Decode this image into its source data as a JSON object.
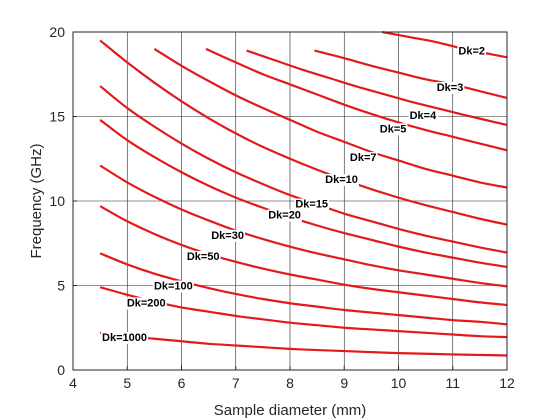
{
  "chart_data": {
    "type": "line",
    "xlabel": "Sample diameter (mm)",
    "ylabel": "Frequency (GHz)",
    "xlim": [
      4,
      12
    ],
    "ylim": [
      0,
      20
    ],
    "xticks": [
      "4",
      "5",
      "6",
      "7",
      "8",
      "9",
      "10",
      "11",
      "12"
    ],
    "yticks": [
      "0",
      "5",
      "10",
      "15",
      "20"
    ],
    "grid": true,
    "line_color": "#e31a1c",
    "series": [
      {
        "name": "Dk=2",
        "label_x": 11.35,
        "label_y": 18.9,
        "points": [
          [
            9.7,
            20.0
          ],
          [
            10.2,
            19.7
          ],
          [
            10.7,
            19.4
          ],
          [
            11.2,
            19.0
          ],
          [
            11.6,
            18.75
          ],
          [
            12.0,
            18.5
          ]
        ]
      },
      {
        "name": "Dk=3",
        "label_x": 10.95,
        "label_y": 16.75,
        "points": [
          [
            8.45,
            18.9
          ],
          [
            9.0,
            18.45
          ],
          [
            9.5,
            18.0
          ],
          [
            10.0,
            17.6
          ],
          [
            10.5,
            17.2
          ],
          [
            11.0,
            16.9
          ],
          [
            11.5,
            16.5
          ],
          [
            12.0,
            16.1
          ]
        ]
      },
      {
        "name": "Dk=4",
        "label_x": 10.45,
        "label_y": 15.1,
        "points": [
          [
            7.2,
            18.9
          ],
          [
            7.7,
            18.35
          ],
          [
            8.2,
            17.8
          ],
          [
            8.7,
            17.3
          ],
          [
            9.2,
            16.8
          ],
          [
            9.7,
            16.35
          ],
          [
            10.2,
            15.9
          ],
          [
            10.7,
            15.5
          ],
          [
            11.2,
            15.1
          ],
          [
            11.6,
            14.8
          ],
          [
            12.0,
            14.5
          ]
        ]
      },
      {
        "name": "Dk=5",
        "label_x": 9.9,
        "label_y": 14.3,
        "points": [
          [
            6.45,
            19.0
          ],
          [
            7.0,
            18.2
          ],
          [
            7.5,
            17.5
          ],
          [
            8.0,
            16.9
          ],
          [
            8.5,
            16.3
          ],
          [
            9.0,
            15.7
          ],
          [
            9.5,
            15.15
          ],
          [
            10.0,
            14.65
          ],
          [
            10.5,
            14.2
          ],
          [
            11.0,
            13.8
          ],
          [
            11.5,
            13.4
          ],
          [
            12.0,
            13.0
          ]
        ]
      },
      {
        "name": "Dk=7",
        "label_x": 9.35,
        "label_y": 12.6,
        "points": [
          [
            5.5,
            19.0
          ],
          [
            6.0,
            18.0
          ],
          [
            6.5,
            17.1
          ],
          [
            7.0,
            16.25
          ],
          [
            7.5,
            15.5
          ],
          [
            8.0,
            14.8
          ],
          [
            8.5,
            14.1
          ],
          [
            9.0,
            13.5
          ],
          [
            9.5,
            12.9
          ],
          [
            10.0,
            12.4
          ],
          [
            10.5,
            11.9
          ],
          [
            11.0,
            11.5
          ],
          [
            11.5,
            11.1
          ],
          [
            12.0,
            10.8
          ]
        ]
      },
      {
        "name": "Dk=10",
        "label_x": 8.95,
        "label_y": 11.3,
        "points": [
          [
            4.5,
            19.5
          ],
          [
            5.0,
            18.2
          ],
          [
            5.5,
            17.0
          ],
          [
            6.0,
            15.9
          ],
          [
            6.5,
            14.9
          ],
          [
            7.0,
            14.0
          ],
          [
            7.5,
            13.2
          ],
          [
            8.0,
            12.5
          ],
          [
            8.5,
            11.85
          ],
          [
            9.0,
            11.25
          ],
          [
            9.5,
            10.7
          ],
          [
            10.0,
            10.2
          ],
          [
            10.5,
            9.75
          ],
          [
            11.0,
            9.35
          ],
          [
            11.5,
            8.95
          ],
          [
            12.0,
            8.6
          ]
        ]
      },
      {
        "name": "Dk=15",
        "label_x": 8.4,
        "label_y": 9.85,
        "points": [
          [
            4.5,
            16.8
          ],
          [
            5.0,
            15.5
          ],
          [
            5.5,
            14.4
          ],
          [
            6.0,
            13.4
          ],
          [
            6.5,
            12.5
          ],
          [
            7.0,
            11.7
          ],
          [
            7.5,
            11.0
          ],
          [
            8.0,
            10.35
          ],
          [
            8.5,
            9.8
          ],
          [
            9.0,
            9.25
          ],
          [
            9.5,
            8.8
          ],
          [
            10.0,
            8.35
          ],
          [
            10.5,
            7.95
          ],
          [
            11.0,
            7.6
          ],
          [
            11.5,
            7.25
          ],
          [
            12.0,
            6.95
          ]
        ]
      },
      {
        "name": "Dk=20",
        "label_x": 7.9,
        "label_y": 9.2,
        "points": [
          [
            4.5,
            14.8
          ],
          [
            5.0,
            13.6
          ],
          [
            5.5,
            12.6
          ],
          [
            6.0,
            11.7
          ],
          [
            6.5,
            10.9
          ],
          [
            7.0,
            10.2
          ],
          [
            7.5,
            9.6
          ],
          [
            8.0,
            9.05
          ],
          [
            8.5,
            8.55
          ],
          [
            9.0,
            8.1
          ],
          [
            9.5,
            7.7
          ],
          [
            10.0,
            7.3
          ],
          [
            10.5,
            6.95
          ],
          [
            11.0,
            6.65
          ],
          [
            11.5,
            6.35
          ],
          [
            12.0,
            6.1
          ]
        ]
      },
      {
        "name": "Dk=30",
        "label_x": 6.85,
        "label_y": 8.0,
        "points": [
          [
            4.5,
            12.1
          ],
          [
            5.0,
            11.1
          ],
          [
            5.5,
            10.25
          ],
          [
            6.0,
            9.5
          ],
          [
            6.5,
            8.85
          ],
          [
            7.0,
            8.25
          ],
          [
            7.5,
            7.75
          ],
          [
            8.0,
            7.3
          ],
          [
            8.5,
            6.9
          ],
          [
            9.0,
            6.55
          ],
          [
            9.5,
            6.2
          ],
          [
            10.0,
            5.9
          ],
          [
            10.5,
            5.65
          ],
          [
            11.0,
            5.4
          ],
          [
            11.5,
            5.15
          ],
          [
            12.0,
            4.95
          ]
        ]
      },
      {
        "name": "Dk=50",
        "label_x": 6.4,
        "label_y": 6.75,
        "points": [
          [
            4.5,
            9.7
          ],
          [
            5.0,
            8.8
          ],
          [
            5.5,
            8.05
          ],
          [
            6.0,
            7.4
          ],
          [
            6.5,
            6.85
          ],
          [
            7.0,
            6.4
          ],
          [
            7.5,
            6.0
          ],
          [
            8.0,
            5.65
          ],
          [
            8.5,
            5.35
          ],
          [
            9.0,
            5.05
          ],
          [
            9.5,
            4.8
          ],
          [
            10.0,
            4.6
          ],
          [
            10.5,
            4.4
          ],
          [
            11.0,
            4.2
          ],
          [
            11.5,
            4.0
          ],
          [
            12.0,
            3.85
          ]
        ]
      },
      {
        "name": "Dk=100",
        "label_x": 5.85,
        "label_y": 5.0,
        "points": [
          [
            4.5,
            6.9
          ],
          [
            5.0,
            6.25
          ],
          [
            5.5,
            5.7
          ],
          [
            6.0,
            5.25
          ],
          [
            6.5,
            4.85
          ],
          [
            7.0,
            4.5
          ],
          [
            7.5,
            4.2
          ],
          [
            8.0,
            3.95
          ],
          [
            8.5,
            3.75
          ],
          [
            9.0,
            3.55
          ],
          [
            9.5,
            3.4
          ],
          [
            10.0,
            3.25
          ],
          [
            10.5,
            3.1
          ],
          [
            11.0,
            2.95
          ],
          [
            11.5,
            2.85
          ],
          [
            12.0,
            2.7
          ]
        ]
      },
      {
        "name": "Dk=200",
        "label_x": 5.35,
        "label_y": 4.0,
        "points": [
          [
            4.5,
            4.9
          ],
          [
            5.0,
            4.45
          ],
          [
            5.5,
            4.05
          ],
          [
            6.0,
            3.7
          ],
          [
            6.5,
            3.45
          ],
          [
            7.0,
            3.2
          ],
          [
            7.5,
            3.0
          ],
          [
            8.0,
            2.8
          ],
          [
            8.5,
            2.65
          ],
          [
            9.0,
            2.5
          ],
          [
            9.5,
            2.4
          ],
          [
            10.0,
            2.3
          ],
          [
            10.5,
            2.2
          ],
          [
            11.0,
            2.1
          ],
          [
            11.5,
            2.0
          ],
          [
            12.0,
            1.95
          ]
        ]
      },
      {
        "name": "Dk=1000",
        "label_x": 4.95,
        "label_y": 1.95,
        "points": [
          [
            4.5,
            2.2
          ],
          [
            5.0,
            2.0
          ],
          [
            5.5,
            1.85
          ],
          [
            6.0,
            1.7
          ],
          [
            6.5,
            1.55
          ],
          [
            7.0,
            1.45
          ],
          [
            7.5,
            1.35
          ],
          [
            8.0,
            1.25
          ],
          [
            8.5,
            1.18
          ],
          [
            9.0,
            1.12
          ],
          [
            9.5,
            1.06
          ],
          [
            10.0,
            1.0
          ],
          [
            10.5,
            0.96
          ],
          [
            11.0,
            0.92
          ],
          [
            11.5,
            0.89
          ],
          [
            12.0,
            0.86
          ]
        ]
      }
    ]
  }
}
